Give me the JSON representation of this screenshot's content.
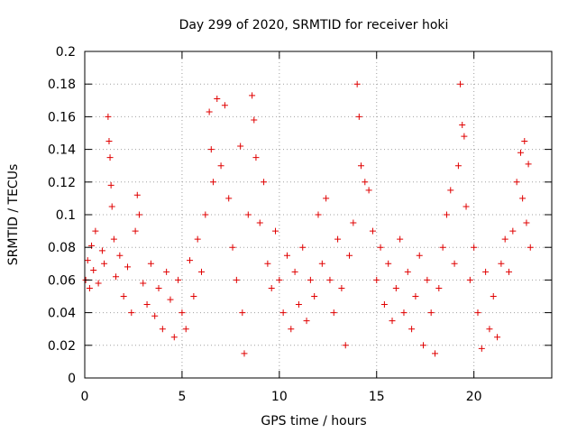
{
  "chart_data": {
    "type": "scatter",
    "title": "Day 299 of 2020, SRMTID for receiver hoki",
    "xlabel": "GPS time / hours",
    "ylabel": "SRMTID / TECUs",
    "xlim": [
      0,
      24
    ],
    "ylim": [
      0,
      0.2
    ],
    "x_ticks": [
      0,
      5,
      10,
      15,
      20
    ],
    "x_tick_labels": [
      "0",
      "5",
      "10",
      "15",
      "20"
    ],
    "y_ticks": [
      0,
      0.02,
      0.04,
      0.06,
      0.08,
      0.1,
      0.12,
      0.14,
      0.16,
      0.18,
      0.2
    ],
    "y_tick_labels": [
      "0",
      "0.02",
      "0.04",
      "0.06",
      "0.08",
      "0.1",
      "0.12",
      "0.14",
      "0.16",
      "0.18",
      "0.2"
    ],
    "grid": true,
    "marker": "+",
    "marker_color": "#e00000",
    "series": [
      {
        "name": "SRMTID",
        "points": [
          [
            0.05,
            0.06
          ],
          [
            0.15,
            0.072
          ],
          [
            0.25,
            0.055
          ],
          [
            0.35,
            0.081
          ],
          [
            0.45,
            0.066
          ],
          [
            0.55,
            0.09
          ],
          [
            0.7,
            0.058
          ],
          [
            0.9,
            0.078
          ],
          [
            1.0,
            0.07
          ],
          [
            1.2,
            0.16
          ],
          [
            1.25,
            0.145
          ],
          [
            1.3,
            0.135
          ],
          [
            1.35,
            0.118
          ],
          [
            1.4,
            0.105
          ],
          [
            1.5,
            0.085
          ],
          [
            1.6,
            0.062
          ],
          [
            1.8,
            0.075
          ],
          [
            2.0,
            0.05
          ],
          [
            2.2,
            0.068
          ],
          [
            2.4,
            0.04
          ],
          [
            2.6,
            0.09
          ],
          [
            2.7,
            0.112
          ],
          [
            2.8,
            0.1
          ],
          [
            3.0,
            0.058
          ],
          [
            3.2,
            0.045
          ],
          [
            3.4,
            0.07
          ],
          [
            3.6,
            0.038
          ],
          [
            3.8,
            0.055
          ],
          [
            4.0,
            0.03
          ],
          [
            4.2,
            0.065
          ],
          [
            4.4,
            0.048
          ],
          [
            4.6,
            0.025
          ],
          [
            4.8,
            0.06
          ],
          [
            5.0,
            0.04
          ],
          [
            5.2,
            0.03
          ],
          [
            5.4,
            0.072
          ],
          [
            5.6,
            0.05
          ],
          [
            5.8,
            0.085
          ],
          [
            6.0,
            0.065
          ],
          [
            6.2,
            0.1
          ],
          [
            6.4,
            0.163
          ],
          [
            6.5,
            0.14
          ],
          [
            6.6,
            0.12
          ],
          [
            6.8,
            0.171
          ],
          [
            7.0,
            0.13
          ],
          [
            7.2,
            0.167
          ],
          [
            7.4,
            0.11
          ],
          [
            7.6,
            0.08
          ],
          [
            7.8,
            0.06
          ],
          [
            8.0,
            0.142
          ],
          [
            8.1,
            0.04
          ],
          [
            8.2,
            0.015
          ],
          [
            8.4,
            0.1
          ],
          [
            8.6,
            0.173
          ],
          [
            8.7,
            0.158
          ],
          [
            8.8,
            0.135
          ],
          [
            9.0,
            0.095
          ],
          [
            9.2,
            0.12
          ],
          [
            9.4,
            0.07
          ],
          [
            9.6,
            0.055
          ],
          [
            9.8,
            0.09
          ],
          [
            10.0,
            0.06
          ],
          [
            10.2,
            0.04
          ],
          [
            10.4,
            0.075
          ],
          [
            10.6,
            0.03
          ],
          [
            10.8,
            0.065
          ],
          [
            11.0,
            0.045
          ],
          [
            11.2,
            0.08
          ],
          [
            11.4,
            0.035
          ],
          [
            11.6,
            0.06
          ],
          [
            11.8,
            0.05
          ],
          [
            12.0,
            0.1
          ],
          [
            12.2,
            0.07
          ],
          [
            12.4,
            0.11
          ],
          [
            12.6,
            0.06
          ],
          [
            12.8,
            0.04
          ],
          [
            13.0,
            0.085
          ],
          [
            13.2,
            0.055
          ],
          [
            13.4,
            0.02
          ],
          [
            13.6,
            0.075
          ],
          [
            13.8,
            0.095
          ],
          [
            14.0,
            0.18
          ],
          [
            14.1,
            0.16
          ],
          [
            14.2,
            0.13
          ],
          [
            14.4,
            0.12
          ],
          [
            14.6,
            0.115
          ],
          [
            14.8,
            0.09
          ],
          [
            15.0,
            0.06
          ],
          [
            15.2,
            0.08
          ],
          [
            15.4,
            0.045
          ],
          [
            15.6,
            0.07
          ],
          [
            15.8,
            0.035
          ],
          [
            16.0,
            0.055
          ],
          [
            16.2,
            0.085
          ],
          [
            16.4,
            0.04
          ],
          [
            16.6,
            0.065
          ],
          [
            16.8,
            0.03
          ],
          [
            17.0,
            0.05
          ],
          [
            17.2,
            0.075
          ],
          [
            17.4,
            0.02
          ],
          [
            17.6,
            0.06
          ],
          [
            17.8,
            0.04
          ],
          [
            18.0,
            0.015
          ],
          [
            18.2,
            0.055
          ],
          [
            18.4,
            0.08
          ],
          [
            18.6,
            0.1
          ],
          [
            18.8,
            0.115
          ],
          [
            19.0,
            0.07
          ],
          [
            19.2,
            0.13
          ],
          [
            19.3,
            0.18
          ],
          [
            19.4,
            0.155
          ],
          [
            19.5,
            0.148
          ],
          [
            19.6,
            0.105
          ],
          [
            19.8,
            0.06
          ],
          [
            20.0,
            0.08
          ],
          [
            20.2,
            0.04
          ],
          [
            20.4,
            0.018
          ],
          [
            20.6,
            0.065
          ],
          [
            20.8,
            0.03
          ],
          [
            21.0,
            0.05
          ],
          [
            21.2,
            0.025
          ],
          [
            21.4,
            0.07
          ],
          [
            21.6,
            0.085
          ],
          [
            21.8,
            0.065
          ],
          [
            22.0,
            0.09
          ],
          [
            22.2,
            0.12
          ],
          [
            22.4,
            0.138
          ],
          [
            22.5,
            0.11
          ],
          [
            22.6,
            0.145
          ],
          [
            22.7,
            0.095
          ],
          [
            22.8,
            0.131
          ],
          [
            22.9,
            0.08
          ]
        ]
      }
    ]
  }
}
